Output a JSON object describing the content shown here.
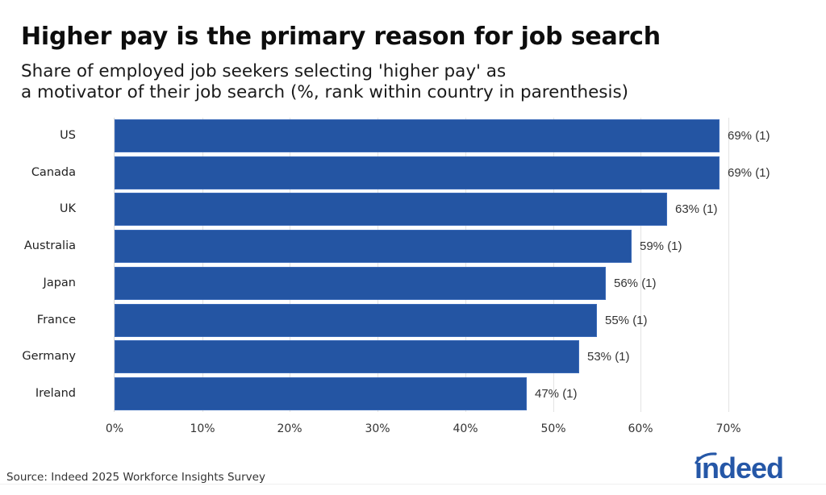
{
  "header": {
    "title": "Higher pay is the primary reason for job search",
    "subtitle_line1": "Share of employed job seekers selecting 'higher pay' as",
    "subtitle_line2": "a motivator of their job search (%, rank within country in parenthesis)"
  },
  "footer": {
    "source": "Source: Indeed 2025 Workforce Insights Survey",
    "logo": "indeed"
  },
  "colors": {
    "bar": "#2455a3",
    "logo": "#2557a7"
  },
  "axis": {
    "ticks": [
      "0%",
      "10%",
      "20%",
      "30%",
      "40%",
      "50%",
      "60%",
      "70%"
    ]
  },
  "bars": [
    {
      "label": "US",
      "value": 69,
      "text": "69% (1)"
    },
    {
      "label": "Canada",
      "value": 69,
      "text": "69% (1)"
    },
    {
      "label": "UK",
      "value": 63,
      "text": "63% (1)"
    },
    {
      "label": "Australia",
      "value": 59,
      "text": "59% (1)"
    },
    {
      "label": "Japan",
      "value": 56,
      "text": "56% (1)"
    },
    {
      "label": "France",
      "value": 55,
      "text": "55% (1)"
    },
    {
      "label": "Germany",
      "value": 53,
      "text": "53% (1)"
    },
    {
      "label": "Ireland",
      "value": 47,
      "text": "47% (1)"
    }
  ],
  "chart_data": {
    "type": "bar",
    "orientation": "horizontal",
    "title": "Higher pay is the primary reason for job search",
    "subtitle": "Share of employed job seekers selecting 'higher pay' as a motivator of their job search (%, rank within country in parenthesis)",
    "categories": [
      "US",
      "Canada",
      "UK",
      "Australia",
      "Japan",
      "France",
      "Germany",
      "Ireland"
    ],
    "values": [
      69,
      69,
      63,
      59,
      56,
      55,
      53,
      47
    ],
    "ranks": [
      1,
      1,
      1,
      1,
      1,
      1,
      1,
      1
    ],
    "data_labels": [
      "69% (1)",
      "69% (1)",
      "63% (1)",
      "59% (1)",
      "56% (1)",
      "55% (1)",
      "53% (1)",
      "47% (1)"
    ],
    "xlabel": "",
    "ylabel": "",
    "xlim": [
      0,
      70
    ],
    "x_ticks": [
      "0%",
      "10%",
      "20%",
      "30%",
      "40%",
      "50%",
      "60%",
      "70%"
    ],
    "grid": "vertical",
    "legend": "none",
    "source": "Source: Indeed 2025 Workforce Insights Survey"
  }
}
